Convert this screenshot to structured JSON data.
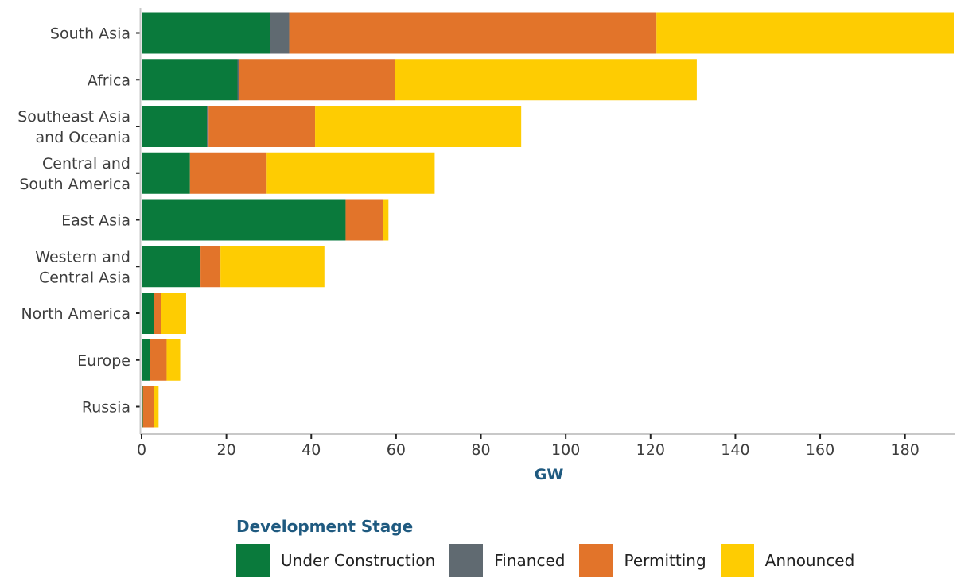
{
  "chart_data": {
    "type": "bar",
    "orientation": "horizontal",
    "stacked": true,
    "categories": [
      [
        "South Asia"
      ],
      [
        "Africa"
      ],
      [
        "Southeast Asia",
        "and Oceania"
      ],
      [
        "Central and",
        "South America"
      ],
      [
        "East Asia"
      ],
      [
        "Western and",
        "Central Asia"
      ],
      [
        "North America"
      ],
      [
        "Europe"
      ],
      [
        "Russia"
      ]
    ],
    "series": [
      {
        "name": "Under Construction",
        "color": "#0a7a3c",
        "values": [
          30.3,
          22.6,
          15.4,
          11.4,
          48.1,
          13.9,
          3.0,
          2.0,
          0.3
        ]
      },
      {
        "name": "Financed",
        "color": "#606a71",
        "values": [
          4.5,
          0.3,
          0.4,
          0.0,
          0.0,
          0.0,
          0.0,
          0.0,
          0.0
        ]
      },
      {
        "name": "Permitting",
        "color": "#e2742a",
        "values": [
          86.6,
          36.8,
          25.1,
          18.1,
          8.9,
          4.7,
          1.6,
          3.9,
          2.7
        ]
      },
      {
        "name": "Announced",
        "color": "#fecc02",
        "values": [
          70.1,
          71.2,
          48.6,
          39.6,
          1.2,
          24.5,
          5.9,
          3.2,
          1.0
        ]
      }
    ],
    "xlabel": "GW",
    "xticks": [
      0,
      20,
      40,
      60,
      80,
      100,
      120,
      140,
      160,
      180
    ],
    "xlim": [
      0,
      191.5
    ],
    "grid": false,
    "legend": {
      "title": "Development Stage",
      "placement": "bottom"
    }
  }
}
